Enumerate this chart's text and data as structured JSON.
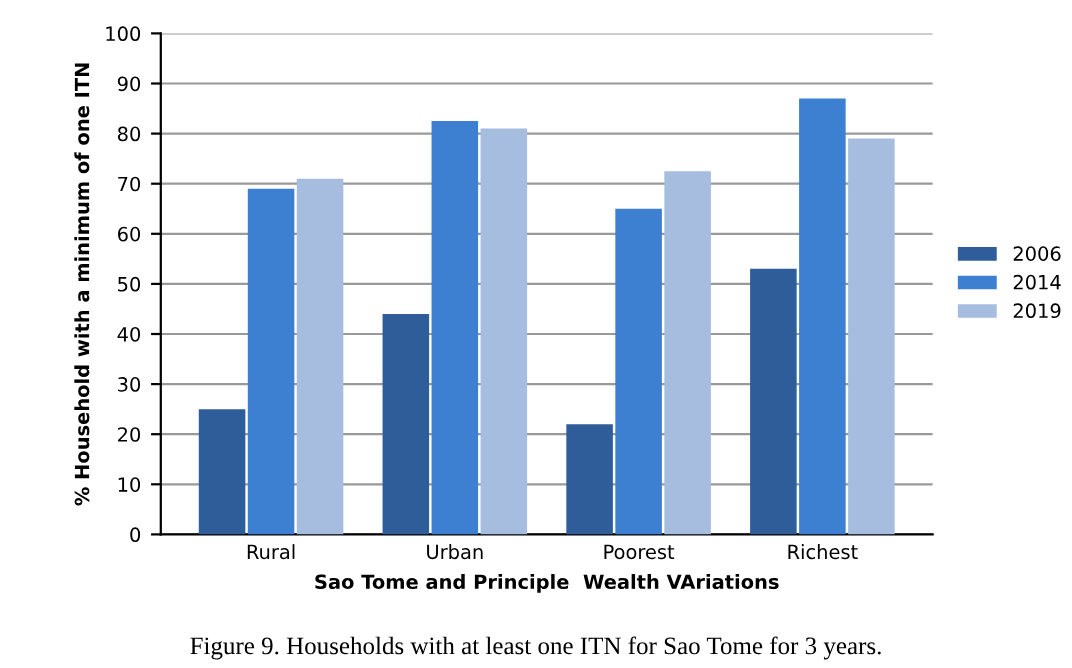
{
  "chart_data": {
    "type": "bar",
    "xlabel": "Sao Tome and Principle  Wealth VAriations",
    "ylabel": "% Household with a minimum of one ITN",
    "categories": [
      "Rural",
      "Urban",
      "Poorest",
      "Richest"
    ],
    "series": [
      {
        "name": "2006",
        "color": "#2e5d9a",
        "values": [
          25,
          44,
          22,
          53
        ]
      },
      {
        "name": "2014",
        "color": "#3d7fd0",
        "values": [
          69,
          82.5,
          65,
          87
        ]
      },
      {
        "name": "2019",
        "color": "#a6bde0",
        "values": [
          71,
          81,
          72.5,
          79
        ]
      }
    ],
    "ylim": [
      0,
      100
    ],
    "yticks": [
      0,
      10,
      20,
      30,
      40,
      50,
      60,
      70,
      80,
      90,
      100
    ],
    "grid": "y",
    "legend": "right",
    "annotations": [
      "Figure 9. Households with at least one ITN for Sao Tome for 3 years."
    ]
  }
}
